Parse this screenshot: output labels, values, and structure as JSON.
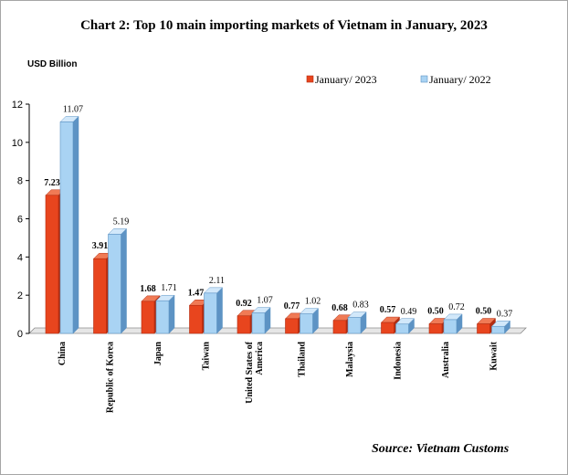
{
  "title": "Chart 2: Top 10 main importing markets of Vietnam in January, 2023",
  "unit_label": "USD Billion",
  "source": "Source: Vietnam Customs",
  "colors": {
    "jan2023_front": "#e8451e",
    "jan2023_side": "#b32c10",
    "jan2023_top": "#f07a55",
    "jan2022_front": "#a9d3f3",
    "jan2022_side": "#5d93c4",
    "jan2022_top": "#d2e8fa"
  },
  "chart_data": {
    "type": "bar",
    "title": "Chart 2: Top 10 main importing markets of Vietnam in January, 2023",
    "ylabel": "USD Billion",
    "xlabel": "",
    "ylim": [
      0,
      12
    ],
    "yticks": [
      0,
      2,
      4,
      6,
      8,
      10,
      12
    ],
    "grid": false,
    "legend_position": "top-right",
    "categories": [
      [
        "China"
      ],
      [
        "Republic of Korea"
      ],
      [
        "Japan"
      ],
      [
        "Taiwan"
      ],
      [
        "United States of",
        "America"
      ],
      [
        "Thailand"
      ],
      [
        "Malaysia"
      ],
      [
        "Indonesia"
      ],
      [
        "Australia"
      ],
      [
        "Kuwait"
      ]
    ],
    "series": [
      {
        "name": "January/ 2023",
        "values": [
          7.23,
          3.91,
          1.68,
          1.47,
          0.92,
          0.77,
          0.68,
          0.57,
          0.5,
          0.5
        ]
      },
      {
        "name": "January/ 2022",
        "values": [
          11.07,
          5.19,
          1.71,
          2.11,
          1.07,
          1.02,
          0.83,
          0.49,
          0.72,
          0.37
        ]
      }
    ],
    "data_labels": [
      [
        "7.23",
        "3.91",
        "1.68",
        "1.47",
        "0.92",
        "0.77",
        "0.68",
        "0.57",
        "0.50",
        "0.50"
      ],
      [
        "11.07",
        "5.19",
        "1.71",
        "2.11",
        "1.07",
        "1.02",
        "0.83",
        "0.49",
        "0.72",
        "0.37"
      ]
    ]
  }
}
